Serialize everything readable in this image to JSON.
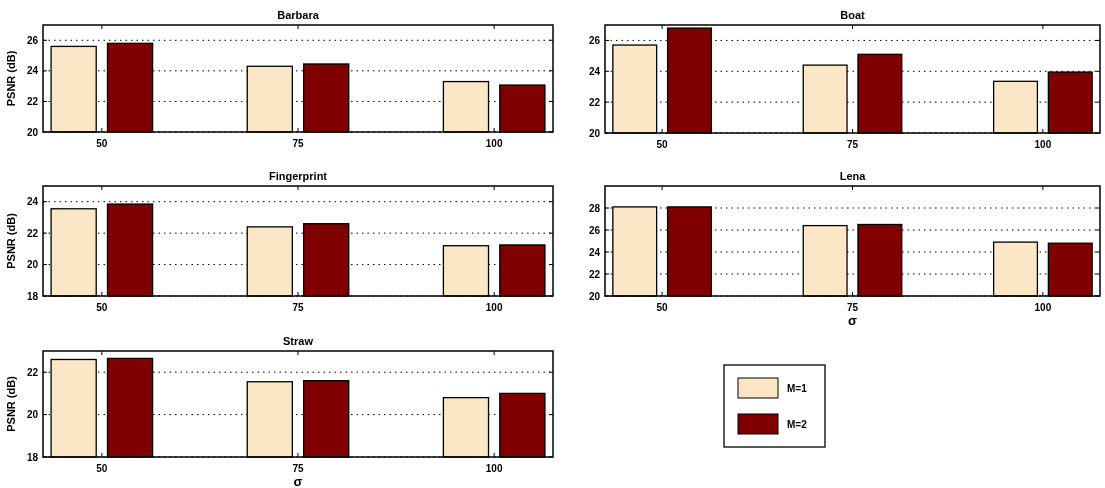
{
  "chart_data": [
    {
      "type": "bar",
      "title": "Barbara",
      "ylabel": "PSNR (dB)",
      "categories": [
        "50",
        "75",
        "100"
      ],
      "ylim": [
        20,
        27
      ],
      "yticks": [
        20,
        22,
        24,
        26
      ],
      "grid": "y",
      "legend": false,
      "series": [
        {
          "color": "#fbe6c6",
          "values": [
            25.6,
            24.3,
            23.3
          ]
        },
        {
          "color": "#800000",
          "values": [
            25.8,
            24.45,
            23.07
          ]
        }
      ]
    },
    {
      "type": "bar",
      "title": "Boat",
      "categories": [
        "50",
        "75",
        "100"
      ],
      "ylim": [
        20,
        27
      ],
      "yticks": [
        20,
        22,
        24,
        26
      ],
      "grid": "y",
      "legend": false,
      "series": [
        {
          "color": "#fbe6c6",
          "values": [
            25.7,
            24.4,
            23.35
          ]
        },
        {
          "color": "#800000",
          "values": [
            26.8,
            25.1,
            23.95
          ]
        }
      ]
    },
    {
      "type": "bar",
      "title": "Fingerprint",
      "ylabel": "PSNR (dB)",
      "categories": [
        "50",
        "75",
        "100"
      ],
      "ylim": [
        18,
        25
      ],
      "yticks": [
        18,
        20,
        22,
        24
      ],
      "grid": "y",
      "legend": false,
      "series": [
        {
          "color": "#fbe6c6",
          "values": [
            23.55,
            22.4,
            21.2
          ]
        },
        {
          "color": "#800000",
          "values": [
            23.85,
            22.6,
            21.25
          ]
        }
      ]
    },
    {
      "type": "bar",
      "title": "Lena",
      "xlabel": "σ",
      "categories": [
        "50",
        "75",
        "100"
      ],
      "ylim": [
        20,
        30
      ],
      "yticks": [
        20,
        22,
        24,
        26,
        28
      ],
      "grid": "y",
      "legend": false,
      "series": [
        {
          "color": "#fbe6c6",
          "values": [
            28.1,
            26.4,
            24.9
          ]
        },
        {
          "color": "#800000",
          "values": [
            28.1,
            26.5,
            24.8
          ]
        }
      ]
    },
    {
      "type": "bar",
      "title": "Straw",
      "ylabel": "PSNR (dB)",
      "xlabel": "σ",
      "categories": [
        "50",
        "75",
        "100"
      ],
      "ylim": [
        18,
        23
      ],
      "yticks": [
        18,
        20,
        22
      ],
      "grid": "y",
      "legend": "right",
      "series": [
        {
          "name": "M=1",
          "color": "#fbe6c6",
          "values": [
            22.6,
            21.55,
            20.8
          ]
        },
        {
          "name": "M=2",
          "color": "#800000",
          "values": [
            22.65,
            21.6,
            21.0
          ]
        }
      ]
    }
  ]
}
